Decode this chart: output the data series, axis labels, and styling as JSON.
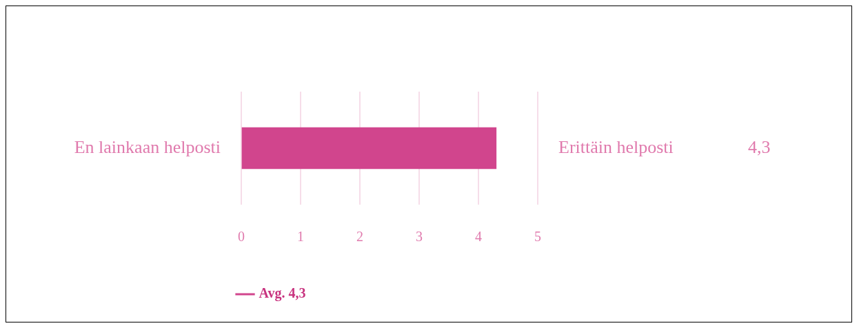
{
  "chart_data": {
    "type": "bar",
    "orientation": "horizontal",
    "categories": [
      "En lainkaan helposti"
    ],
    "series": [
      {
        "name": "Avg. 4,3",
        "color": "#d1458d",
        "values": [
          4.3
        ]
      }
    ],
    "xlim": [
      0,
      5
    ],
    "xticks": [
      0,
      1,
      2,
      3,
      4,
      5
    ],
    "grid": "x",
    "legend": "bottom",
    "annotations": [
      "Erittäin helposti",
      "4,3"
    ]
  }
}
